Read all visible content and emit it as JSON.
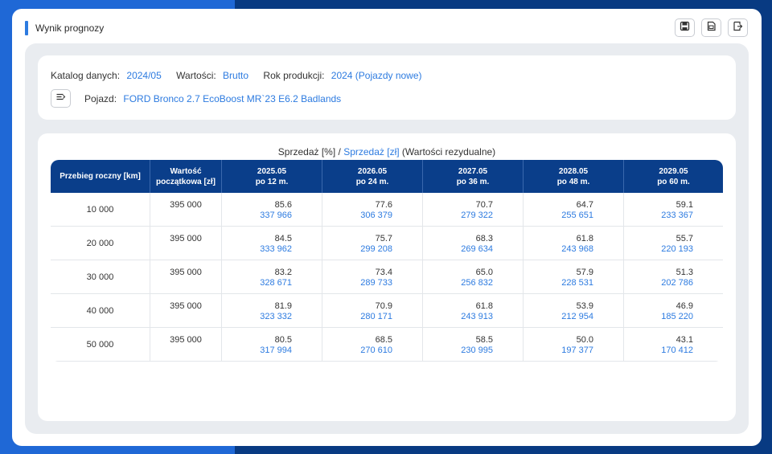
{
  "panel": {
    "title": "Wynik prognozy"
  },
  "toolbar": {
    "buttons": [
      {
        "icon": "save-icon"
      },
      {
        "icon": "csv-export-icon"
      },
      {
        "icon": "export-icon"
      }
    ]
  },
  "info": {
    "catalog_label": "Katalog danych:",
    "catalog_value": "2024/05",
    "values_label": "Wartości:",
    "values_value": "Brutto",
    "year_label": "Rok produkcji:",
    "year_value": "2024 (Pojazdy nowe)",
    "vehicle_label": "Pojazd:",
    "vehicle_value": "FORD Bronco 2.7 EcoBoost MR`23 E6.2 Badlands"
  },
  "table": {
    "caption_part1": "Sprzedaż [%]",
    "caption_sep": "/",
    "caption_part2": "Sprzedaż [zł]",
    "caption_part3": "(Wartości rezydualne)",
    "headers": {
      "mileage": "Przebieg roczny [km]",
      "initial_line1": "Wartość",
      "initial_line2": "początkowa [zł]",
      "years": [
        {
          "date": "2025.05",
          "period": "po 12 m."
        },
        {
          "date": "2026.05",
          "period": "po 24 m."
        },
        {
          "date": "2027.05",
          "period": "po 36 m."
        },
        {
          "date": "2028.05",
          "period": "po 48 m."
        },
        {
          "date": "2029.05",
          "period": "po 60 m."
        }
      ]
    },
    "rows": [
      {
        "km": "10 000",
        "initial": "395 000",
        "cells": [
          {
            "pct": "85.6",
            "pln": "337 966"
          },
          {
            "pct": "77.6",
            "pln": "306 379"
          },
          {
            "pct": "70.7",
            "pln": "279 322"
          },
          {
            "pct": "64.7",
            "pln": "255 651"
          },
          {
            "pct": "59.1",
            "pln": "233 367"
          }
        ]
      },
      {
        "km": "20 000",
        "initial": "395 000",
        "cells": [
          {
            "pct": "84.5",
            "pln": "333 962"
          },
          {
            "pct": "75.7",
            "pln": "299 208"
          },
          {
            "pct": "68.3",
            "pln": "269 634"
          },
          {
            "pct": "61.8",
            "pln": "243 968"
          },
          {
            "pct": "55.7",
            "pln": "220 193"
          }
        ]
      },
      {
        "km": "30 000",
        "initial": "395 000",
        "cells": [
          {
            "pct": "83.2",
            "pln": "328 671"
          },
          {
            "pct": "73.4",
            "pln": "289 733"
          },
          {
            "pct": "65.0",
            "pln": "256 832"
          },
          {
            "pct": "57.9",
            "pln": "228 531"
          },
          {
            "pct": "51.3",
            "pln": "202 786"
          }
        ]
      },
      {
        "km": "40 000",
        "initial": "395 000",
        "cells": [
          {
            "pct": "81.9",
            "pln": "323 332"
          },
          {
            "pct": "70.9",
            "pln": "280 171"
          },
          {
            "pct": "61.8",
            "pln": "243 913"
          },
          {
            "pct": "53.9",
            "pln": "212 954"
          },
          {
            "pct": "46.9",
            "pln": "185 220"
          }
        ]
      },
      {
        "km": "50 000",
        "initial": "395 000",
        "cells": [
          {
            "pct": "80.5",
            "pln": "317 994"
          },
          {
            "pct": "68.5",
            "pln": "270 610"
          },
          {
            "pct": "58.5",
            "pln": "230 995"
          },
          {
            "pct": "50.0",
            "pln": "197 377"
          },
          {
            "pct": "43.1",
            "pln": "170 412"
          }
        ]
      }
    ]
  },
  "colors": {
    "accent": "#2d7be0",
    "header_bg": "#0a3e8a",
    "bg_left": "#1f68d6",
    "bg_right": "#083a82"
  }
}
